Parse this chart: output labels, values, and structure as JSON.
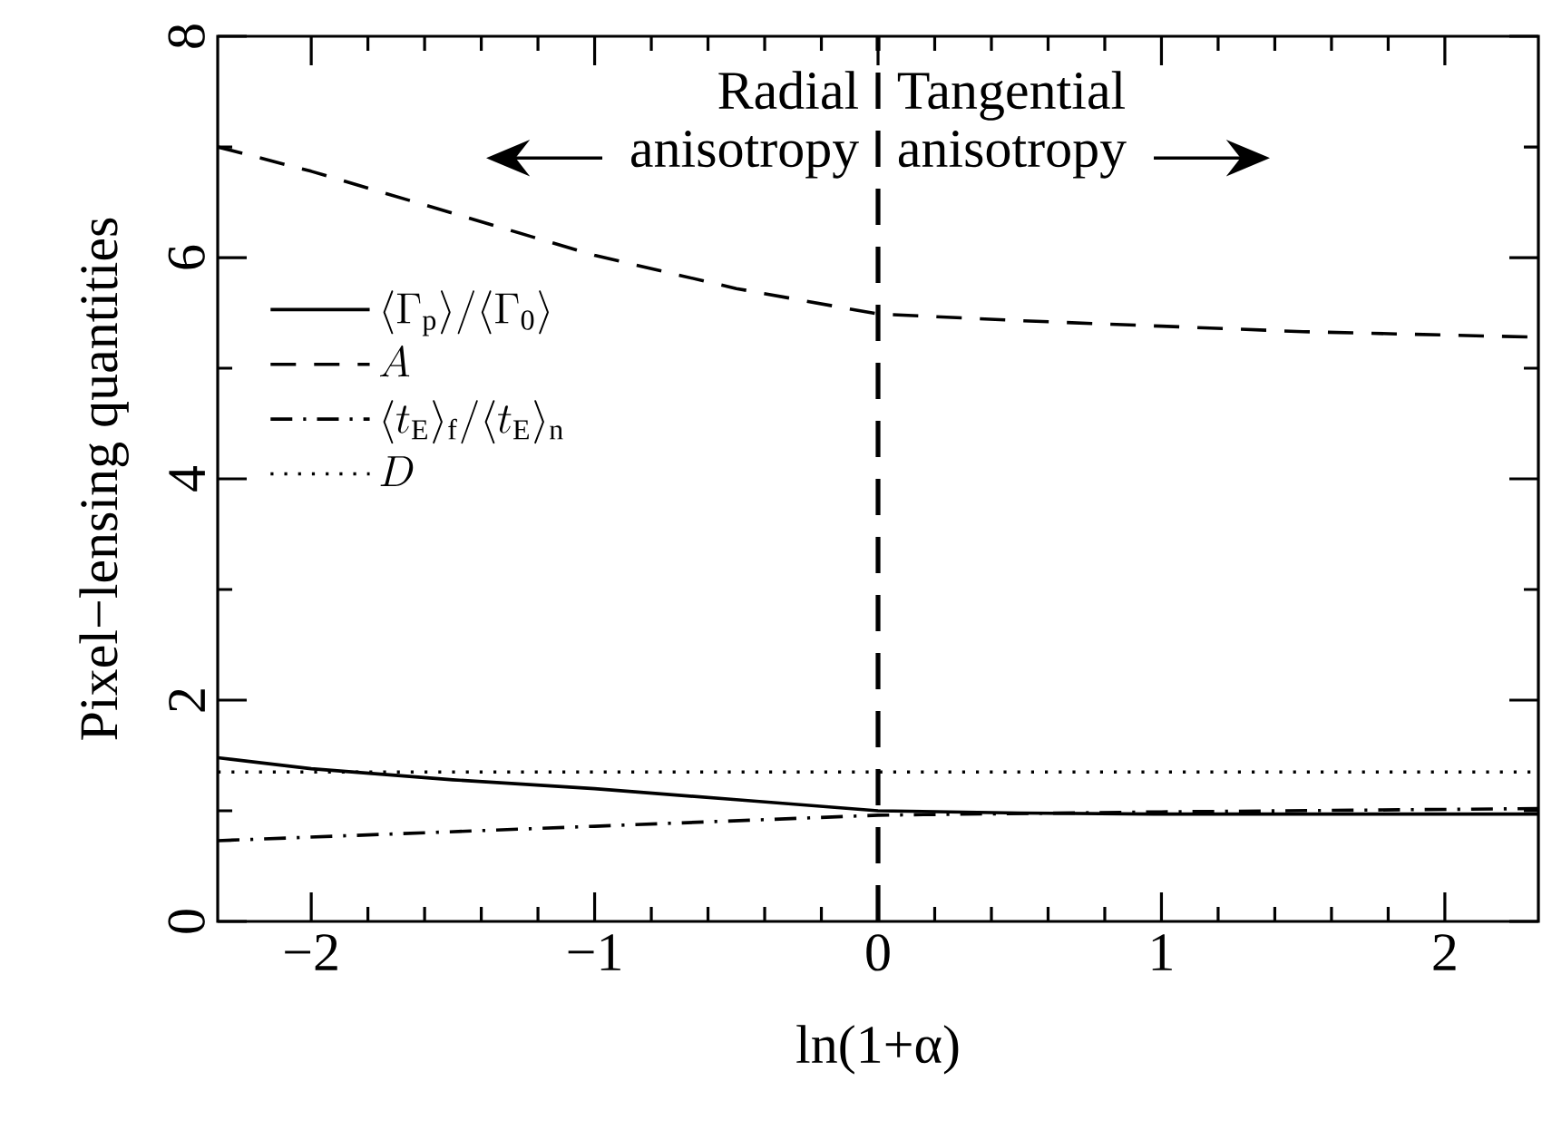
{
  "chart_data": {
    "type": "line",
    "xlabel": "ln(1+α)",
    "ylabel": "Pixel−lensing quantities",
    "xlim": [
      -2.33,
      2.33
    ],
    "ylim": [
      0,
      8
    ],
    "xticks": [
      {
        "value": -2,
        "label": "−2"
      },
      {
        "value": -1,
        "label": "−1"
      },
      0,
      1,
      2
    ],
    "yticks": [
      0,
      2,
      4,
      6,
      8
    ],
    "legend": "left",
    "grid": false,
    "marker": "none",
    "series": [
      {
        "name": "\\langle\\Gamma_{\\mathrm{p}}\\rangle/\\langle\\Gamma_{\\mathrm{0}}\\rangle",
        "color": "#000000",
        "line_style": "solid",
        "x": [
          -2.33,
          -2,
          -1.5,
          -1,
          -0.5,
          0,
          0.5,
          1,
          1.5,
          2,
          2.33
        ],
        "values": [
          1.48,
          1.38,
          1.28,
          1.2,
          1.1,
          1.0,
          0.98,
          0.97,
          0.97,
          0.97,
          0.97
        ]
      },
      {
        "name": "A",
        "color": "#000000",
        "line_style": "dashed",
        "x": [
          -2.33,
          -2,
          -1.5,
          -1,
          -0.5,
          0,
          0.5,
          1,
          1.5,
          2,
          2.33
        ],
        "values": [
          7.0,
          6.78,
          6.4,
          6.02,
          5.72,
          5.49,
          5.43,
          5.38,
          5.33,
          5.3,
          5.28
        ]
      },
      {
        "name": "\\langle t_{\\mathrm{E}}\\rangle_{\\mathrm{f}}/\\langle t_{\\mathrm{E}}\\rangle_{\\mathrm{n}}",
        "color": "#000000",
        "line_style": "dashdot",
        "x": [
          -2.33,
          -1,
          0,
          1,
          2.33
        ],
        "values": [
          0.73,
          0.86,
          0.96,
          0.99,
          1.02
        ]
      },
      {
        "name": "D",
        "color": "#000000",
        "line_style": "dotted",
        "x": [
          -2.33,
          0,
          2.33
        ],
        "values": [
          1.35,
          1.35,
          1.35
        ]
      }
    ],
    "ref_lines": [
      {
        "axis": "x",
        "value": 0,
        "line_style": "dashed",
        "color": "#000000"
      }
    ],
    "annotations": [
      "Radial anisotropy",
      "Tangential anisotropy"
    ]
  }
}
